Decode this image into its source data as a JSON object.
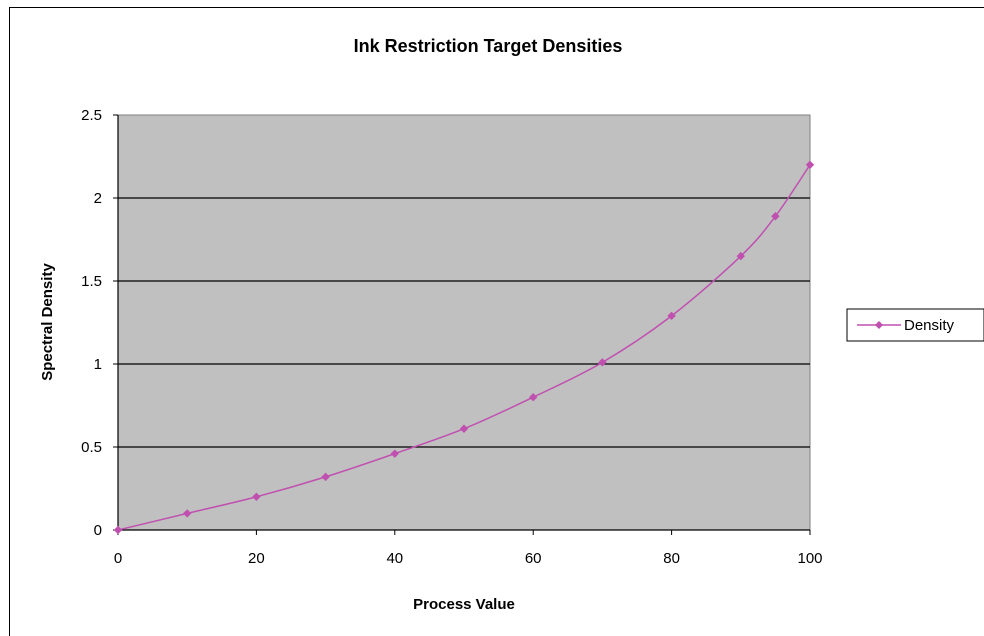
{
  "chart_data": {
    "type": "line",
    "title": "Ink Restriction Target Densities",
    "xlabel": "Process Value",
    "ylabel": "Spectral Density",
    "xlim": [
      0,
      100
    ],
    "ylim": [
      0,
      2.5
    ],
    "xticks": [
      "0",
      "20",
      "40",
      "60",
      "80",
      "100"
    ],
    "yticks": [
      "0",
      "0.5",
      "1",
      "1.5",
      "2",
      "2.5"
    ],
    "grid": "horizontal",
    "legend_position": "right",
    "plot_background": "#c0c0c0",
    "series": [
      {
        "name": "Density",
        "color": "#c050b0",
        "marker": "diamond",
        "x": [
          0,
          10,
          20,
          30,
          40,
          50,
          60,
          70,
          80,
          90,
          95,
          100
        ],
        "values": [
          0,
          0.1,
          0.2,
          0.32,
          0.46,
          0.61,
          0.8,
          1.01,
          1.29,
          1.65,
          1.89,
          2.2
        ]
      }
    ]
  }
}
